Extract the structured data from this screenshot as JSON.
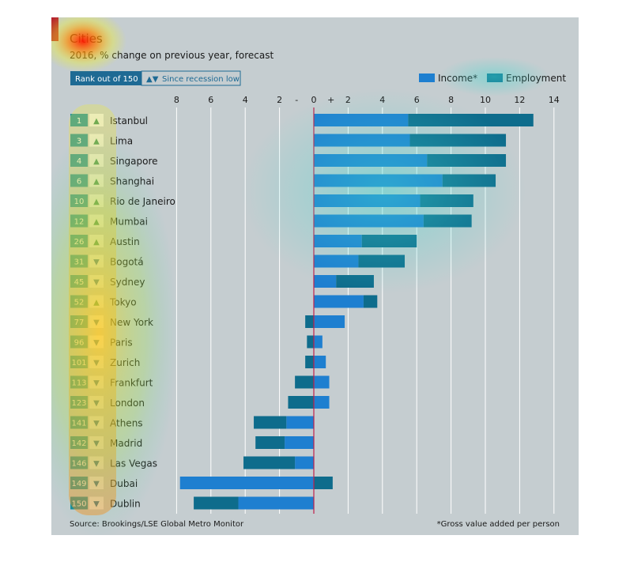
{
  "chart_data": {
    "type": "bar",
    "title": "Cities",
    "subtitle": "2016, % change on previous year, forecast",
    "rank_header": "Rank out of 150",
    "trend_header": "Since recession low",
    "legend": [
      {
        "name": "Income*",
        "color": "#1e7fd0"
      },
      {
        "name": "Employment",
        "color": "#0e6c8c"
      }
    ],
    "legend_position": "top-right",
    "x_ticks": [
      "8",
      "6",
      "4",
      "2",
      "-",
      "0",
      "+",
      "2",
      "4",
      "6",
      "8",
      "10",
      "12",
      "14"
    ],
    "xlim": [
      -8,
      14
    ],
    "grid": true,
    "categories": [
      "Istanbul",
      "Lima",
      "Singapore",
      "Shanghai",
      "Rio de Janeiro",
      "Mumbai",
      "Austin",
      "Bogotá",
      "Sydney",
      "Tokyo",
      "New York",
      "Paris",
      "Zurich",
      "Frankfurt",
      "London",
      "Athens",
      "Madrid",
      "Las Vegas",
      "Dubai",
      "Dublin"
    ],
    "ranks": [
      "1",
      "3",
      "4",
      "6",
      "10",
      "12",
      "26",
      "31",
      "45",
      "52",
      "77",
      "96",
      "101",
      "113",
      "123",
      "141",
      "142",
      "146",
      "149",
      "150"
    ],
    "trend": [
      "up",
      "up",
      "up",
      "up",
      "up",
      "up",
      "up",
      "down",
      "down",
      "up",
      "down",
      "down",
      "down",
      "down",
      "down",
      "down",
      "down",
      "down",
      "down",
      "down"
    ],
    "series": [
      {
        "name": "Income*",
        "values": [
          5.5,
          5.6,
          6.6,
          7.5,
          6.2,
          6.4,
          2.8,
          2.6,
          1.3,
          2.9,
          1.8,
          0.5,
          0.7,
          0.9,
          0.9,
          -1.6,
          -1.7,
          -1.1,
          -7.8,
          -4.4
        ]
      },
      {
        "name": "Employment",
        "values": [
          7.3,
          5.6,
          4.6,
          3.1,
          3.1,
          2.8,
          3.2,
          2.7,
          2.2,
          0.8,
          -0.5,
          -0.4,
          -0.5,
          -1.1,
          -1.5,
          -1.9,
          -1.7,
          -3.0,
          1.1,
          -2.6
        ]
      }
    ],
    "source": "Source: Brookings/LSE Global Metro Monitor",
    "footnote": "*Gross value added per person"
  },
  "colors": {
    "background": "#c5cdd0",
    "accent": "#b5222f",
    "rank_box": "#128a9a",
    "gridline": "#ffffff",
    "zero_line": "#c0204a"
  }
}
